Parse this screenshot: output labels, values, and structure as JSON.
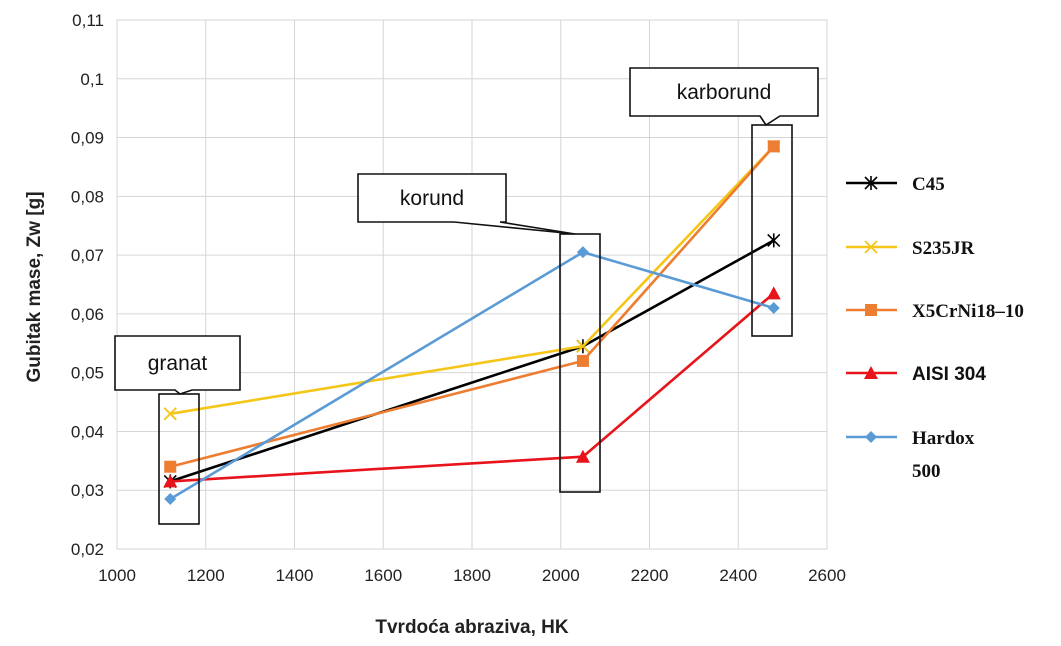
{
  "chart_data": {
    "type": "line",
    "xlabel": "Tvrdoća abraziva, HK",
    "ylabel": "Gubitak mase, Zw [g]",
    "xlim": [
      1000,
      2600
    ],
    "ylim": [
      0.02,
      0.11
    ],
    "x_ticks": [
      1000,
      1200,
      1400,
      1600,
      1800,
      2000,
      2200,
      2400,
      2600
    ],
    "x_tick_labels": [
      "1000",
      "1200",
      "1400",
      "1600",
      "1800",
      "2000",
      "2200",
      "2400",
      "2600"
    ],
    "y_ticks": [
      0.02,
      0.03,
      0.04,
      0.05,
      0.06,
      0.07,
      0.08,
      0.09,
      0.1,
      0.11
    ],
    "y_tick_labels": [
      "0,02",
      "0,03",
      "0,04",
      "0,05",
      "0,06",
      "0,07",
      "0,08",
      "0,09",
      "0,1",
      "0,11"
    ],
    "grid": true,
    "legend_position": "right",
    "x": [
      1120,
      2050,
      2480
    ],
    "series": [
      {
        "name": "C45",
        "values": [
          0.0315,
          0.0545,
          0.0725
        ],
        "color": "#000000",
        "marker": "star"
      },
      {
        "name": "S235JR",
        "values": [
          0.043,
          0.0545,
          0.0885
        ],
        "color": "#f5c518",
        "marker": "x"
      },
      {
        "name": "X5CrNi18–10",
        "values": [
          0.034,
          0.052,
          0.0885
        ],
        "color": "#ed7d31",
        "marker": "square"
      },
      {
        "name": "AISI 304",
        "values": [
          0.0315,
          0.0357,
          0.0635
        ],
        "color": "#e8141b",
        "marker": "triangle"
      },
      {
        "name": "Hardox 500",
        "values": [
          0.0285,
          0.0705,
          0.061
        ],
        "color": "#5b9bd5",
        "marker": "diamond"
      }
    ],
    "annotations": [
      {
        "label": "granat",
        "x": 1120
      },
      {
        "label": "korund",
        "x": 2050
      },
      {
        "label": "karborund",
        "x": 2480
      }
    ],
    "legend_lines": {
      "C45": [
        "C45"
      ],
      "S235JR": [
        "S235JR"
      ],
      "X5CrNi18–10": [
        "X5CrNi18–10"
      ],
      "AISI 304": [
        "AISI 304"
      ],
      "Hardox 500": [
        "Hardox",
        "500"
      ]
    }
  }
}
